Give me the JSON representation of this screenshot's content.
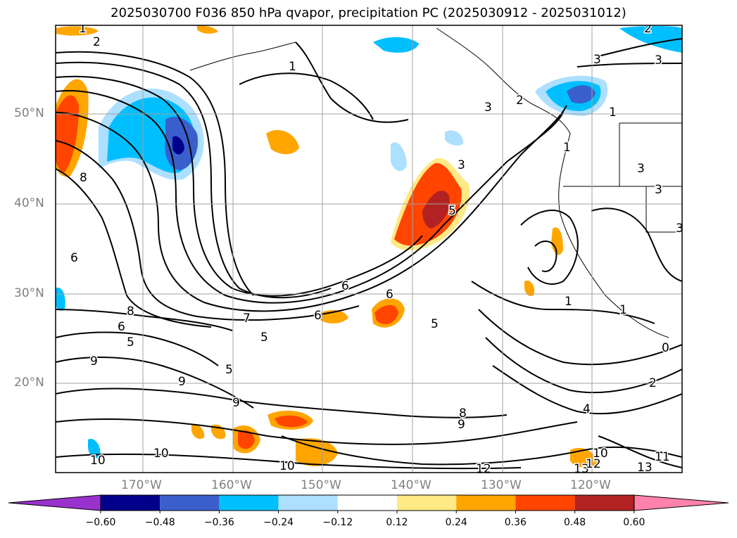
{
  "title": "2025030700 F036 850 hPa qvapor, precipitation PC (2025030912 - 2025031012)",
  "lat_labels": [
    "50°N",
    "40°N",
    "30°N",
    "20°N"
  ],
  "lon_labels": [
    "170°W",
    "160°W",
    "150°W",
    "140°W",
    "130°W",
    "120°W"
  ],
  "colorbar": {
    "colors": [
      "#9932CC",
      "#00008B",
      "#3A5FCD",
      "#00BFFF",
      "#ADDFFF",
      "#FFFFFF",
      "#FFE985",
      "#FFA500",
      "#FF4500",
      "#B22222",
      "#FF82AB"
    ],
    "ticks": [
      "−0.60",
      "−0.48",
      "−0.36",
      "−0.24",
      "−0.12",
      "0.12",
      "0.24",
      "0.36",
      "0.48",
      "0.60"
    ]
  },
  "contour_labels": [
    "1",
    "2",
    "2",
    "3",
    "1",
    "3",
    "8",
    "6",
    "3",
    "5",
    "6",
    "6",
    "8",
    "7",
    "6",
    "5",
    "6",
    "5",
    "9",
    "5",
    "9",
    "9",
    "8",
    "9",
    "10",
    "10",
    "10",
    "12",
    "13",
    "12",
    "10",
    "13",
    "11",
    "1",
    "1",
    "2",
    "4",
    "0",
    "1",
    "3",
    "2",
    "3",
    "3",
    "3",
    "1",
    "5"
  ]
}
